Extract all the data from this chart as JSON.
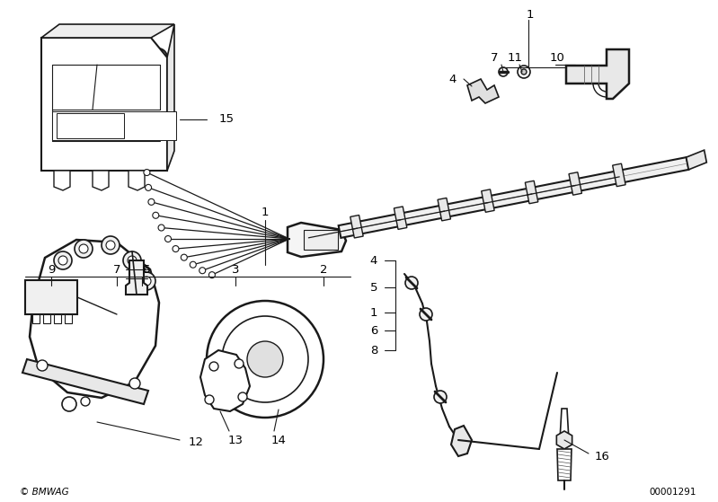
{
  "bg_color": "#ffffff",
  "fig_width": 7.99,
  "fig_height": 5.59,
  "dpi": 100,
  "copyright_text": "© BMWAG",
  "part_number": "00001291",
  "line_color": "#1a1a1a",
  "text_color": "#000000",
  "label_fontsize": 9.5,
  "small_fontsize": 7.5
}
